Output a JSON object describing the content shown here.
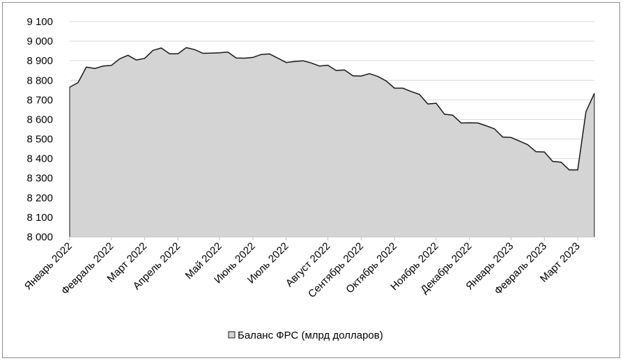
{
  "chart_data": {
    "type": "area",
    "legend": {
      "label": "Баланс ФРС (млрд  долларов)",
      "position": "bottom"
    },
    "colors": {
      "fill": "#d4d4d4",
      "line": "#1a1a1a",
      "grid": "#d9d9d9",
      "frame": "#8c8c8c"
    },
    "grid": true,
    "ylim": [
      8000,
      9100
    ],
    "yticks": [
      "8 000",
      "8 100",
      "8 200",
      "8 300",
      "8 400",
      "8 500",
      "8 600",
      "8 700",
      "8 800",
      "8 900",
      "9 000",
      "9 100"
    ],
    "ytick_values": [
      8000,
      8100,
      8200,
      8300,
      8400,
      8500,
      8600,
      8700,
      8800,
      8900,
      9000,
      9100
    ],
    "xticks": [
      "Январь 2022",
      "Февраль 2022",
      "Март 2022",
      "Апрель 2022",
      "Май 2022",
      "Июнь 2022",
      "Июль 2022",
      "Август 2022",
      "Сентябрь 2022",
      "Октябрь 2022",
      "Ноябрь 2022",
      "Декабрь 2022",
      "Январь 2023",
      "Февраль 2023",
      "Март 2023"
    ],
    "xtick_week_index": [
      0,
      5,
      9,
      13,
      18,
      22,
      26,
      31,
      35,
      39,
      44,
      48,
      53,
      57,
      61
    ],
    "values": [
      8765,
      8788,
      8868,
      8860,
      8873,
      8876,
      8910,
      8928,
      8904,
      8912,
      8953,
      8965,
      8936,
      8936,
      8967,
      8957,
      8938,
      8939,
      8941,
      8944,
      8914,
      8913,
      8917,
      8932,
      8935,
      8913,
      8891,
      8896,
      8900,
      8889,
      8873,
      8877,
      8850,
      8853,
      8823,
      8822,
      8834,
      8820,
      8797,
      8760,
      8760,
      8743,
      8728,
      8679,
      8683,
      8627,
      8622,
      8582,
      8583,
      8582,
      8568,
      8552,
      8510,
      8508,
      8490,
      8471,
      8435,
      8434,
      8386,
      8382,
      8342,
      8342,
      8640,
      8733
    ]
  }
}
